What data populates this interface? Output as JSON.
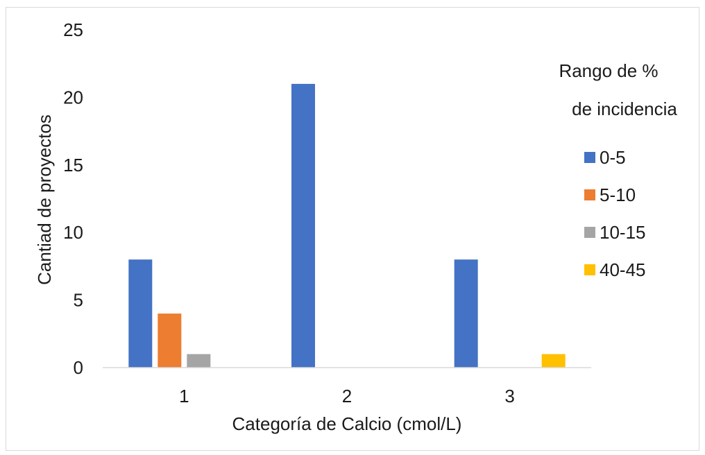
{
  "chart_data": {
    "type": "bar",
    "title": "",
    "xlabel": "Categoría de Calcio (cmol/L)",
    "ylabel": "Cantiad de proyectos",
    "categories": [
      "1",
      "2",
      "3"
    ],
    "ylim": [
      0,
      25
    ],
    "yticks": [
      0,
      5,
      10,
      15,
      20,
      25
    ],
    "grid": false,
    "legend": {
      "title_line1": "Rango de %",
      "title_line2": "de incidencia",
      "placement": "right"
    },
    "series": [
      {
        "name": "0-5",
        "color": "#4472C4",
        "values": [
          8,
          21,
          8
        ]
      },
      {
        "name": "5-10",
        "color": "#ED7D31",
        "values": [
          4,
          0,
          0
        ]
      },
      {
        "name": "10-15",
        "color": "#A5A5A5",
        "values": [
          1,
          0,
          0
        ]
      },
      {
        "name": "40-45",
        "color": "#FFC000",
        "values": [
          0,
          0,
          1
        ]
      }
    ]
  }
}
